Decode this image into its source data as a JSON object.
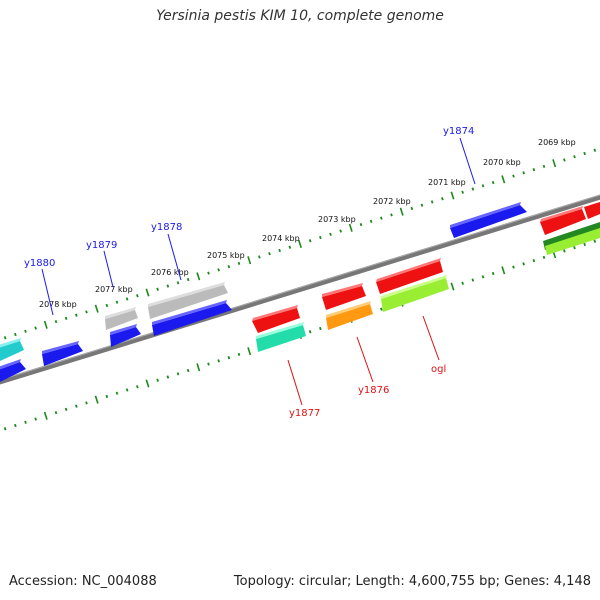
{
  "title": "Yersinia pestis KIM 10, complete genome",
  "footer": {
    "accession": "Accession: NC_004088",
    "summary": "Topology: circular; Length: 4,600,755 bp; Genes: 4,148"
  },
  "colors": {
    "backbone": "#777777",
    "ticks": "#1a8a1a",
    "forward_label": "#1a1aee",
    "reverse_label": "#dd1111"
  },
  "kbp_ticks": [
    "2069 kbp",
    "2070 kbp",
    "2071 kbp",
    "2072 kbp",
    "2073 kbp",
    "2074 kbp",
    "2075 kbp",
    "2076 kbp",
    "2077 kbp",
    "2078 kbp"
  ],
  "gene_labels": {
    "forward": [
      "y1874",
      "y1878",
      "y1879",
      "y1880"
    ],
    "reverse": [
      "y1877",
      "y1876",
      "ogl"
    ]
  },
  "features": [
    {
      "name": "feature-forward-blue-1",
      "color": "#1a1aee"
    },
    {
      "name": "feature-forward-blue-2",
      "color": "#1a1aee"
    },
    {
      "name": "feature-forward-blue-3",
      "color": "#1a1aee"
    },
    {
      "name": "feature-forward-blue-4",
      "color": "#1a1aee"
    },
    {
      "name": "feature-forward-blue-5",
      "color": "#1a1aee"
    },
    {
      "name": "feature-forward-cyan",
      "color": "#22cccc"
    },
    {
      "name": "feature-forward-grey-1",
      "color": "#bbbbbb"
    },
    {
      "name": "feature-forward-grey-2",
      "color": "#bbbbbb"
    },
    {
      "name": "feature-reverse-red-1",
      "color": "#ee1111"
    },
    {
      "name": "feature-reverse-red-2",
      "color": "#ee1111"
    },
    {
      "name": "feature-reverse-red-3",
      "color": "#ee1111"
    },
    {
      "name": "feature-reverse-red-4",
      "color": "#ee1111"
    },
    {
      "name": "feature-reverse-red-5",
      "color": "#ee1111"
    },
    {
      "name": "feature-reverse-teal",
      "color": "#22ddaa"
    },
    {
      "name": "feature-reverse-orange",
      "color": "#ff9911"
    },
    {
      "name": "feature-reverse-lime-1",
      "color": "#99ee33"
    },
    {
      "name": "feature-reverse-lime-2",
      "color": "#99ee33"
    },
    {
      "name": "feature-reverse-darkgreen",
      "color": "#228822"
    }
  ]
}
